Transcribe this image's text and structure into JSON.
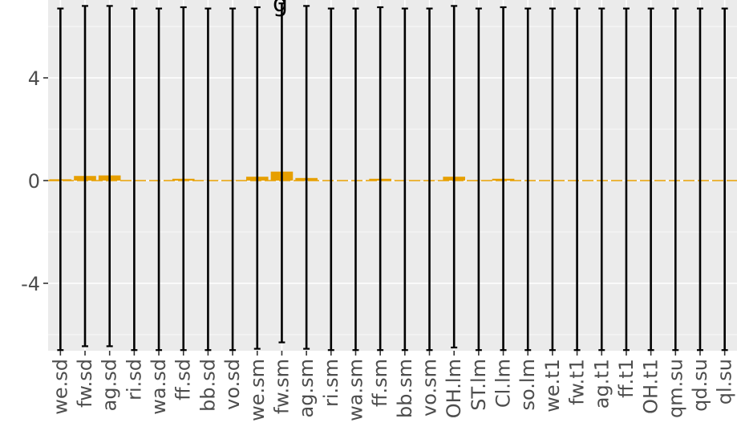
{
  "chart_data": {
    "type": "bar",
    "title": "g",
    "xlabel": "",
    "ylabel": "",
    "ylim": [
      -6.6,
      6.9
    ],
    "yticks": [
      {
        "value": -4,
        "label": "-4"
      },
      {
        "value": 0,
        "label": "0"
      },
      {
        "value": 4,
        "label": "4"
      }
    ],
    "grid": true,
    "background": "#ebebeb",
    "bar_color": "#e69f00",
    "zero_line_color": "#e69f00",
    "error_bar_color": "#000000",
    "categories": [
      "we.sd",
      "fw.sd",
      "ag.sd",
      "ri.sd",
      "wa.sd",
      "ff.sd",
      "bb.sd",
      "vo.sd",
      "we.sm",
      "fw.sm",
      "ag.sm",
      "ri.sm",
      "wa.sm",
      "ff.sm",
      "bb.sm",
      "vo.sm",
      "OH.lm",
      "ST.lm",
      "Cl.lm",
      "so.lm",
      "we.t1",
      "fw.t1",
      "ag.t1",
      "ff.t1",
      "OH.t1",
      "qm.su",
      "qd.su",
      "ql.su"
    ],
    "values": [
      0.05,
      0.18,
      0.2,
      0,
      0,
      0.07,
      0.01,
      0.01,
      0.15,
      0.35,
      0.1,
      0,
      0,
      0.07,
      0.01,
      0.01,
      0.15,
      0.01,
      0.07,
      0,
      0,
      0,
      0,
      0,
      0,
      0,
      0,
      0
    ],
    "error_low": [
      -6.6,
      -6.45,
      -6.45,
      -6.6,
      -6.6,
      -6.6,
      -6.6,
      -6.6,
      -6.55,
      -6.3,
      -6.55,
      -6.6,
      -6.6,
      -6.6,
      -6.6,
      -6.6,
      -6.5,
      -6.6,
      -6.6,
      -6.6,
      -6.6,
      -6.6,
      -6.6,
      -6.6,
      -6.6,
      -6.6,
      -6.6,
      -6.6
    ],
    "error_high": [
      6.7,
      6.8,
      6.8,
      6.7,
      6.7,
      6.75,
      6.7,
      6.7,
      6.75,
      6.9,
      6.8,
      6.7,
      6.7,
      6.75,
      6.7,
      6.7,
      6.8,
      6.7,
      6.75,
      6.7,
      6.7,
      6.7,
      6.7,
      6.7,
      6.7,
      6.7,
      6.7,
      6.7
    ]
  }
}
